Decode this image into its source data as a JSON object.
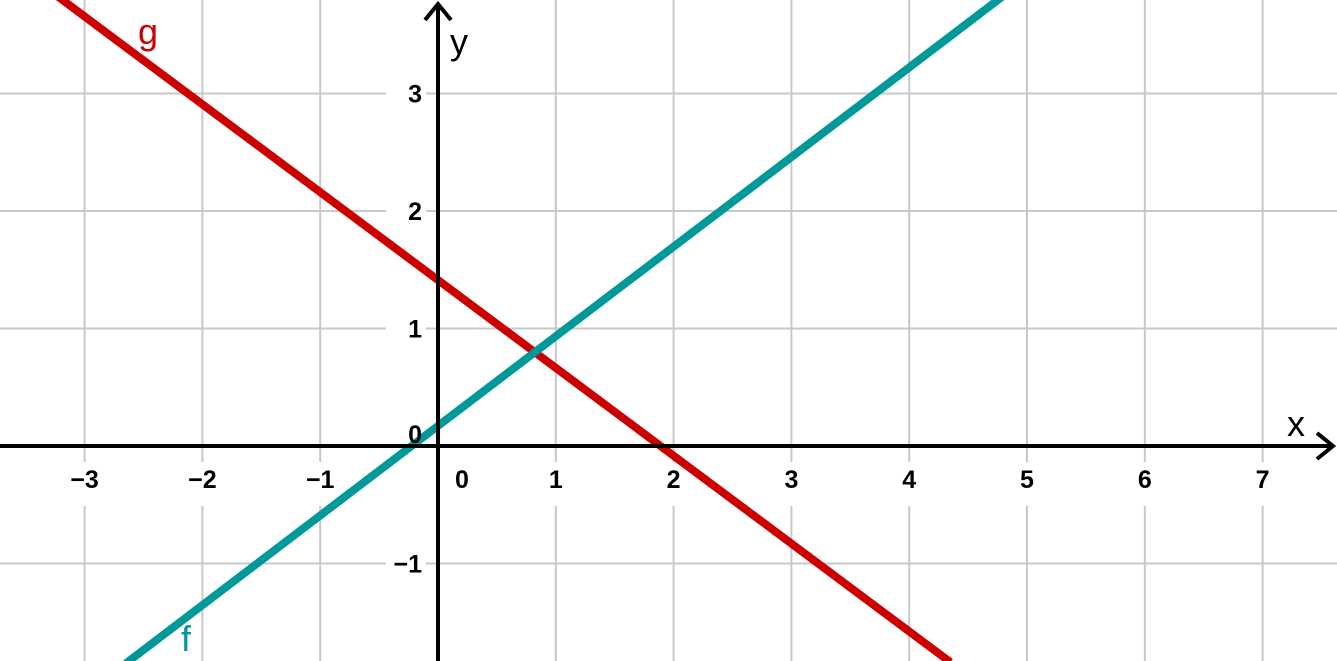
{
  "chart_data": {
    "type": "line",
    "title": "",
    "xlabel": "x",
    "ylabel": "y",
    "xlim": [
      -3.7,
      7.6
    ],
    "ylim": [
      -1.8,
      3.75
    ],
    "grid": true,
    "x_ticks": [
      -3,
      -2,
      -1,
      0,
      1,
      2,
      3,
      4,
      5,
      6,
      7
    ],
    "y_ticks": [
      -1,
      1,
      2,
      3
    ],
    "x_tick_labels": [
      "−3",
      "−2",
      "−1",
      "0",
      "1",
      "2",
      "3",
      "4",
      "5",
      "6",
      "7"
    ],
    "y_tick_labels": [
      "−1",
      "1",
      "2",
      "3"
    ],
    "origin_label": "0",
    "series": [
      {
        "name": "g",
        "color": "#cc0000",
        "x": [
          -3.3,
          4.35
        ],
        "y": [
          3.88,
          -1.84
        ]
      },
      {
        "name": "f",
        "color": "#009999",
        "x": [
          -2.65,
          4.85
        ],
        "y": [
          -1.85,
          3.87
        ]
      }
    ]
  }
}
